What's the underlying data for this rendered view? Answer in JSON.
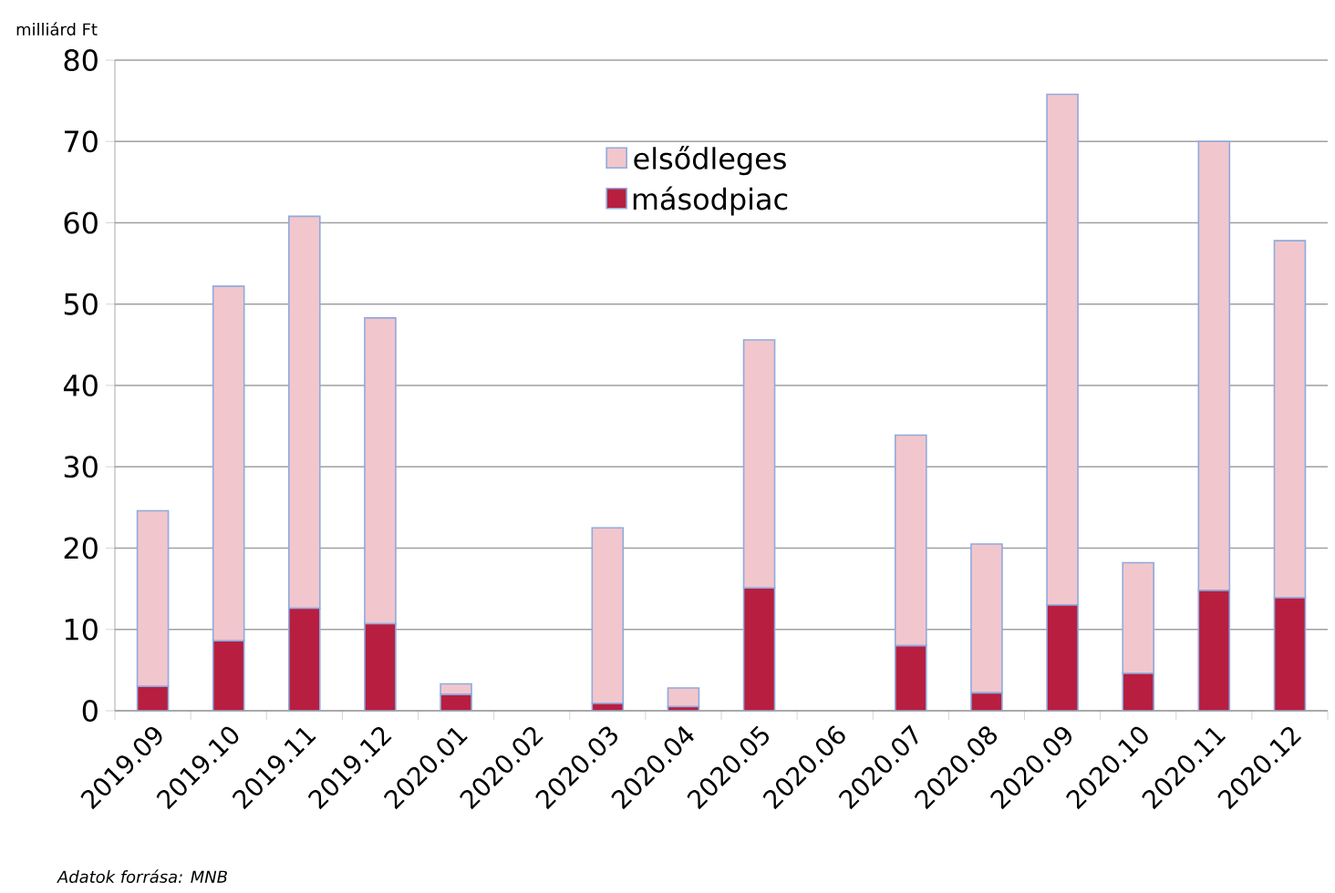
{
  "chart_data": {
    "type": "bar",
    "stacked": true,
    "ylabel": "milliárd Ft",
    "categories": [
      "2019.09",
      "2019.10",
      "2019.11",
      "2019.12",
      "2020.01",
      "2020.02",
      "2020.03",
      "2020.04",
      "2020.05",
      "2020.06",
      "2020.07",
      "2020.08",
      "2020.09",
      "2020.10",
      "2020.11",
      "2020.12"
    ],
    "series": [
      {
        "name": "másodpiac",
        "color": "#b81e40",
        "values": [
          3.0,
          8.6,
          12.6,
          10.7,
          2.0,
          null,
          0.9,
          0.5,
          15.1,
          null,
          8.0,
          2.2,
          13.0,
          4.6,
          14.8,
          13.9
        ]
      },
      {
        "name": "elsődleges",
        "color": "#f2c6cd",
        "values": [
          21.6,
          43.6,
          48.2,
          37.6,
          1.3,
          null,
          21.6,
          2.3,
          30.5,
          null,
          25.9,
          18.3,
          62.8,
          13.6,
          55.2,
          43.9
        ]
      }
    ],
    "ylim": [
      0,
      80
    ],
    "yticks": [
      0,
      10,
      20,
      30,
      40,
      50,
      60,
      70,
      80
    ],
    "grid": "y",
    "legend": "top",
    "annotations": [
      "Adatok forrása: MNB"
    ]
  }
}
